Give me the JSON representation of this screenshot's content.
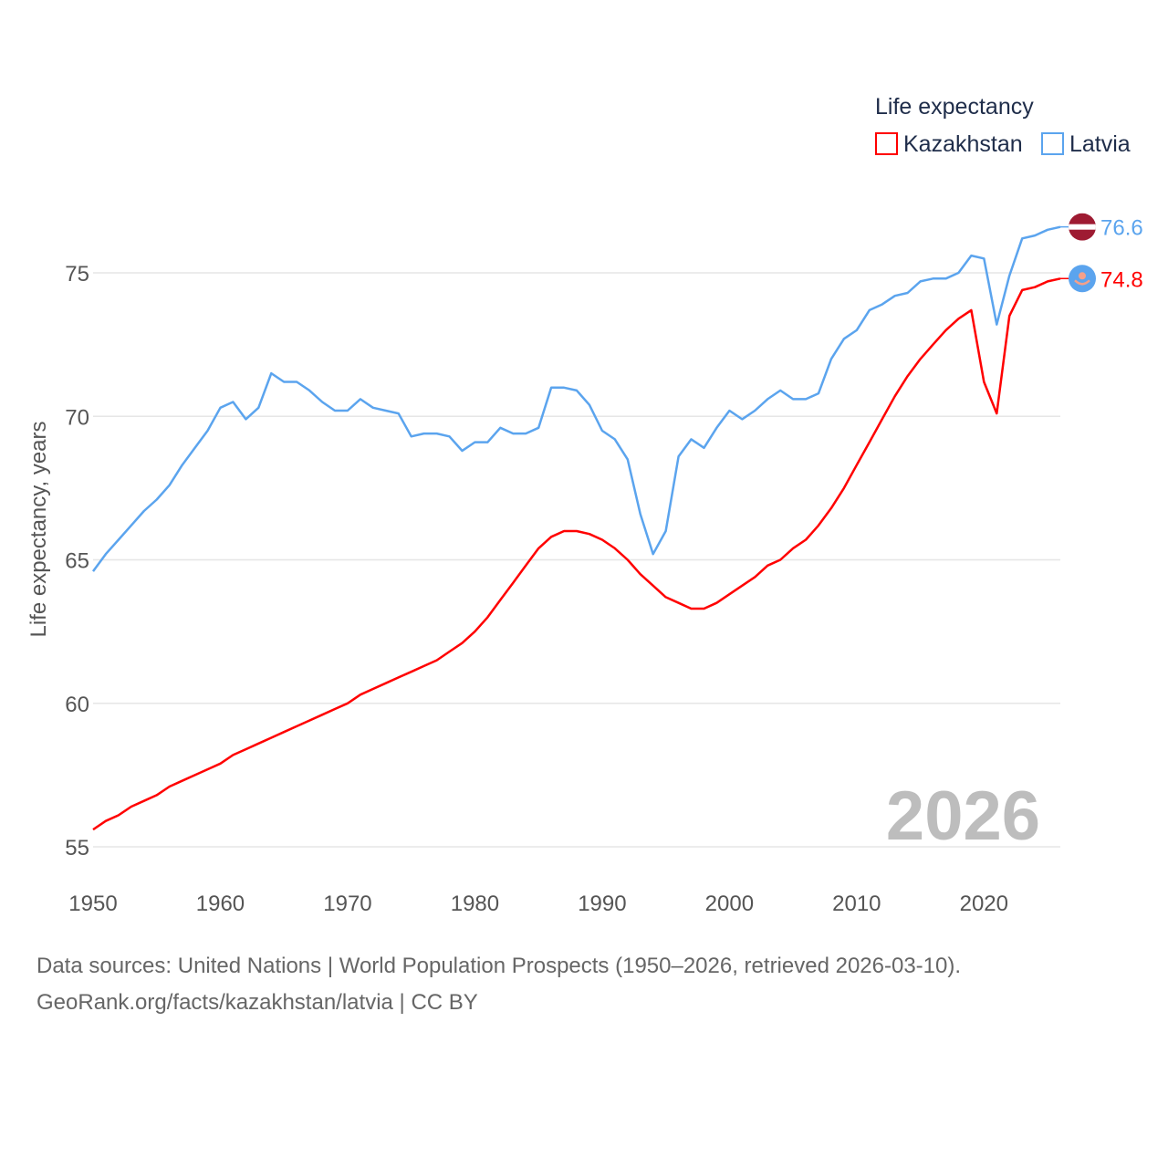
{
  "chart_data": {
    "type": "line",
    "title": "",
    "xlabel": "",
    "ylabel": "Life expectancy, years",
    "xlim": [
      1950,
      2026
    ],
    "ylim": [
      55,
      75
    ],
    "grid": true,
    "xticks": [
      1950,
      1960,
      1970,
      1980,
      1990,
      2000,
      2010,
      2020
    ],
    "yticks": [
      55,
      60,
      65,
      70,
      75
    ],
    "legend": {
      "title": "Life expectancy",
      "placement": "top-right"
    },
    "current_year": "2026",
    "x": [
      1950,
      1951,
      1952,
      1953,
      1954,
      1955,
      1956,
      1957,
      1958,
      1959,
      1960,
      1961,
      1962,
      1963,
      1964,
      1965,
      1966,
      1967,
      1968,
      1969,
      1970,
      1971,
      1972,
      1973,
      1974,
      1975,
      1976,
      1977,
      1978,
      1979,
      1980,
      1981,
      1982,
      1983,
      1984,
      1985,
      1986,
      1987,
      1988,
      1989,
      1990,
      1991,
      1992,
      1993,
      1994,
      1995,
      1996,
      1997,
      1998,
      1999,
      2000,
      2001,
      2002,
      2003,
      2004,
      2005,
      2006,
      2007,
      2008,
      2009,
      2010,
      2011,
      2012,
      2013,
      2014,
      2015,
      2016,
      2017,
      2018,
      2019,
      2020,
      2021,
      2022,
      2023,
      2024,
      2025,
      2026
    ],
    "series": [
      {
        "name": "Kazakhstan",
        "color": "#ff0000",
        "end_label": "74.8",
        "flag": "kazakhstan-flag",
        "values": [
          55.6,
          55.9,
          56.1,
          56.4,
          56.6,
          56.8,
          57.1,
          57.3,
          57.5,
          57.7,
          57.9,
          58.2,
          58.4,
          58.6,
          58.8,
          59.0,
          59.2,
          59.4,
          59.6,
          59.8,
          60.0,
          60.3,
          60.5,
          60.7,
          60.9,
          61.1,
          61.3,
          61.5,
          61.8,
          62.1,
          62.5,
          63.0,
          63.6,
          64.2,
          64.8,
          65.4,
          65.8,
          66.0,
          66.0,
          65.9,
          65.7,
          65.4,
          65.0,
          64.5,
          64.1,
          63.7,
          63.5,
          63.3,
          63.3,
          63.5,
          63.8,
          64.1,
          64.4,
          64.8,
          65.0,
          65.4,
          65.7,
          66.2,
          66.8,
          67.5,
          68.3,
          69.1,
          69.9,
          70.7,
          71.4,
          72.0,
          72.5,
          73.0,
          73.4,
          73.7,
          71.2,
          70.1,
          73.5,
          74.4,
          74.5,
          74.7,
          74.8
        ]
      },
      {
        "name": "Latvia",
        "color": "#5ba4ee",
        "end_label": "76.6",
        "flag": "latvia-flag",
        "values": [
          64.6,
          65.2,
          65.7,
          66.2,
          66.7,
          67.1,
          67.6,
          68.3,
          68.9,
          69.5,
          70.3,
          70.5,
          69.9,
          70.3,
          71.5,
          71.2,
          71.2,
          70.9,
          70.5,
          70.2,
          70.2,
          70.6,
          70.3,
          70.2,
          70.1,
          69.3,
          69.4,
          69.4,
          69.3,
          68.8,
          69.1,
          69.1,
          69.6,
          69.4,
          69.4,
          69.6,
          71.0,
          71.0,
          70.9,
          70.4,
          69.5,
          69.2,
          68.5,
          66.6,
          65.2,
          66.0,
          68.6,
          69.2,
          68.9,
          69.6,
          70.2,
          69.9,
          70.2,
          70.6,
          70.9,
          70.6,
          70.6,
          70.8,
          72.0,
          72.7,
          73.0,
          73.7,
          73.9,
          74.2,
          74.3,
          74.7,
          74.8,
          74.8,
          75.0,
          75.6,
          75.5,
          73.2,
          74.9,
          76.2,
          76.3,
          76.5,
          76.6
        ]
      }
    ]
  },
  "footer": {
    "sources": "Data sources: United Nations | World Population Prospects (1950–2026, retrieved 2026-03-10).",
    "credit": "GeoRank.org/facts/kazakhstan/latvia | CC BY"
  }
}
